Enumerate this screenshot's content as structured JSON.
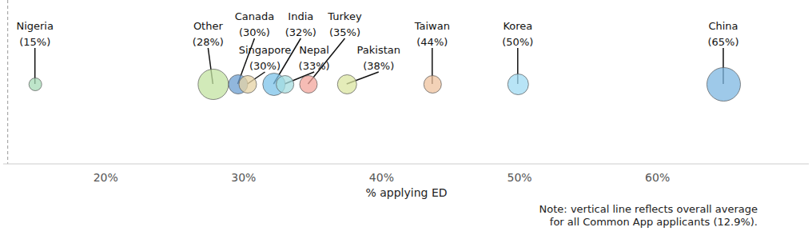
{
  "chart_data": {
    "type": "bubble",
    "x_label": "% applying ED",
    "categories": [
      "Nigeria",
      "Other",
      "Canada",
      "Singapore",
      "India",
      "Nepal",
      "Turkey",
      "Pakistan",
      "Taiwan",
      "Korea",
      "China"
    ],
    "values": [
      14.9,
      27.8,
      29.6,
      30.3,
      32.2,
      33.0,
      34.7,
      37.5,
      43.7,
      49.9,
      64.8
    ],
    "value_labels": [
      "(15%)",
      "(28%)",
      "(30%)",
      "(30%)",
      "(32%)",
      "(33%)",
      "(35%)",
      "(38%)",
      "(44%)",
      "(50%)",
      "(65%)"
    ],
    "sizes": [
      64,
      361,
      144,
      121,
      196,
      121,
      121,
      144,
      121,
      169,
      441
    ],
    "colors": [
      "#a8dcb8",
      "#c3e3a2",
      "#6c9fd2",
      "#e6d3a4",
      "#7cc3ea",
      "#a6dde0",
      "#f3a59c",
      "#dbe5a2",
      "#efc39f",
      "#a0dbf3",
      "#7db7e2"
    ],
    "data_labels": true,
    "average": 12.9,
    "note": [
      "Note: vertical line reflects overall average",
      "for all Common App applicants (12.9%)."
    ],
    "xlim": [
      12.6,
      71
    ],
    "xticks": [
      {
        "value": 20,
        "label": "20%"
      },
      {
        "value": 30,
        "label": "30%"
      },
      {
        "value": 40,
        "label": "40%"
      },
      {
        "value": 50,
        "label": "50%"
      },
      {
        "value": 60,
        "label": "60%"
      }
    ],
    "tick_labels": "x"
  }
}
